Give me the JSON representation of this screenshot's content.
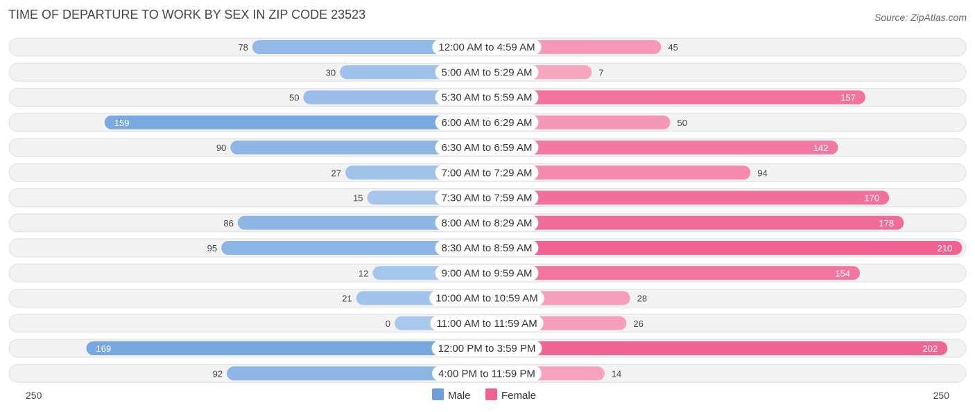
{
  "chart_data": {
    "type": "bar",
    "orientation": "horizontal-diverging",
    "title": "TIME OF DEPARTURE TO WORK BY SEX IN ZIP CODE 23523",
    "source": "Source: ZipAtlas.com",
    "categories": [
      "12:00 AM to 4:59 AM",
      "5:00 AM to 5:29 AM",
      "5:30 AM to 5:59 AM",
      "6:00 AM to 6:29 AM",
      "6:30 AM to 6:59 AM",
      "7:00 AM to 7:29 AM",
      "7:30 AM to 7:59 AM",
      "8:00 AM to 8:29 AM",
      "8:30 AM to 8:59 AM",
      "9:00 AM to 9:59 AM",
      "10:00 AM to 10:59 AM",
      "11:00 AM to 11:59 AM",
      "12:00 PM to 3:59 PM",
      "4:00 PM to 11:59 PM"
    ],
    "series": [
      {
        "name": "Male",
        "color": "#6a9fdc",
        "light_color": "#a9c8ec",
        "values": [
          78,
          30,
          50,
          159,
          90,
          27,
          15,
          86,
          95,
          12,
          21,
          0,
          169,
          92
        ]
      },
      {
        "name": "Female",
        "color": "#f06292",
        "light_color": "#f7a8c2",
        "values": [
          45,
          7,
          157,
          50,
          142,
          94,
          170,
          178,
          210,
          154,
          28,
          26,
          202,
          14
        ]
      }
    ],
    "axis": {
      "left_label": "250",
      "right_label": "250",
      "max": 250
    },
    "legend": {
      "position": "bottom-center",
      "items": [
        "Male",
        "Female"
      ]
    }
  }
}
